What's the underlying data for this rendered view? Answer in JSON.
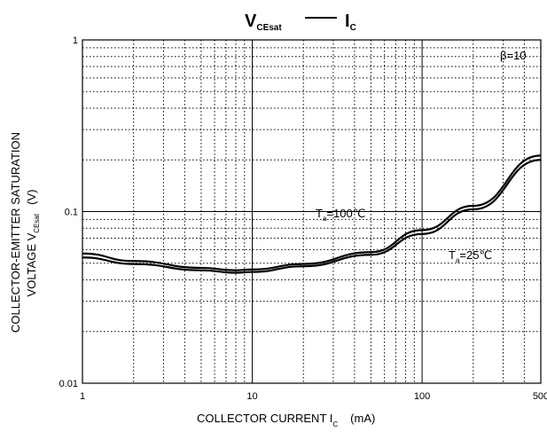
{
  "chart_data": {
    "type": "line",
    "title": {
      "left_main": "V",
      "left_sub": "CEsat",
      "right_main": "I",
      "right_sub": "C"
    },
    "beta_label": "β=10",
    "xlabel": {
      "main": "COLLECTOR CURRENT   I",
      "sub": "C",
      "unit": "(mA)"
    },
    "ylabel": {
      "line1": "COLLECTOR-EMITTER SATURATION",
      "line2_main": "VOLTAGE   V",
      "line2_sub": "CEsat",
      "line2_unit": "(V)"
    },
    "x_scale": "log",
    "y_scale": "log",
    "xlim": [
      1,
      500
    ],
    "ylim": [
      0.01,
      1
    ],
    "x_ticks": [
      {
        "value": 1,
        "label": "1"
      },
      {
        "value": 10,
        "label": "10"
      },
      {
        "value": 100,
        "label": "100"
      },
      {
        "value": 500,
        "label": "500"
      }
    ],
    "y_ticks": [
      {
        "value": 1,
        "label": "1"
      },
      {
        "value": 0.1,
        "label": "0.1"
      },
      {
        "value": 0.01,
        "label": "0.01"
      }
    ],
    "grid": true,
    "series": [
      {
        "name": "Ta=100℃",
        "label_main": "T",
        "label_sub": "a",
        "label_rest": "=100℃",
        "x": [
          1,
          2,
          5,
          8,
          10,
          20,
          50,
          100,
          200,
          500
        ],
        "y": [
          0.057,
          0.0515,
          0.047,
          0.0455,
          0.046,
          0.0495,
          0.058,
          0.078,
          0.108,
          0.212
        ]
      },
      {
        "name": "Ta=25℃",
        "label_main": "T",
        "label_sub": "a",
        "label_rest": "=25℃",
        "x": [
          1,
          2,
          5,
          8,
          10,
          20,
          50,
          100,
          200,
          500
        ],
        "y": [
          0.054,
          0.0495,
          0.0455,
          0.044,
          0.0445,
          0.048,
          0.056,
          0.074,
          0.103,
          0.2
        ]
      }
    ]
  }
}
